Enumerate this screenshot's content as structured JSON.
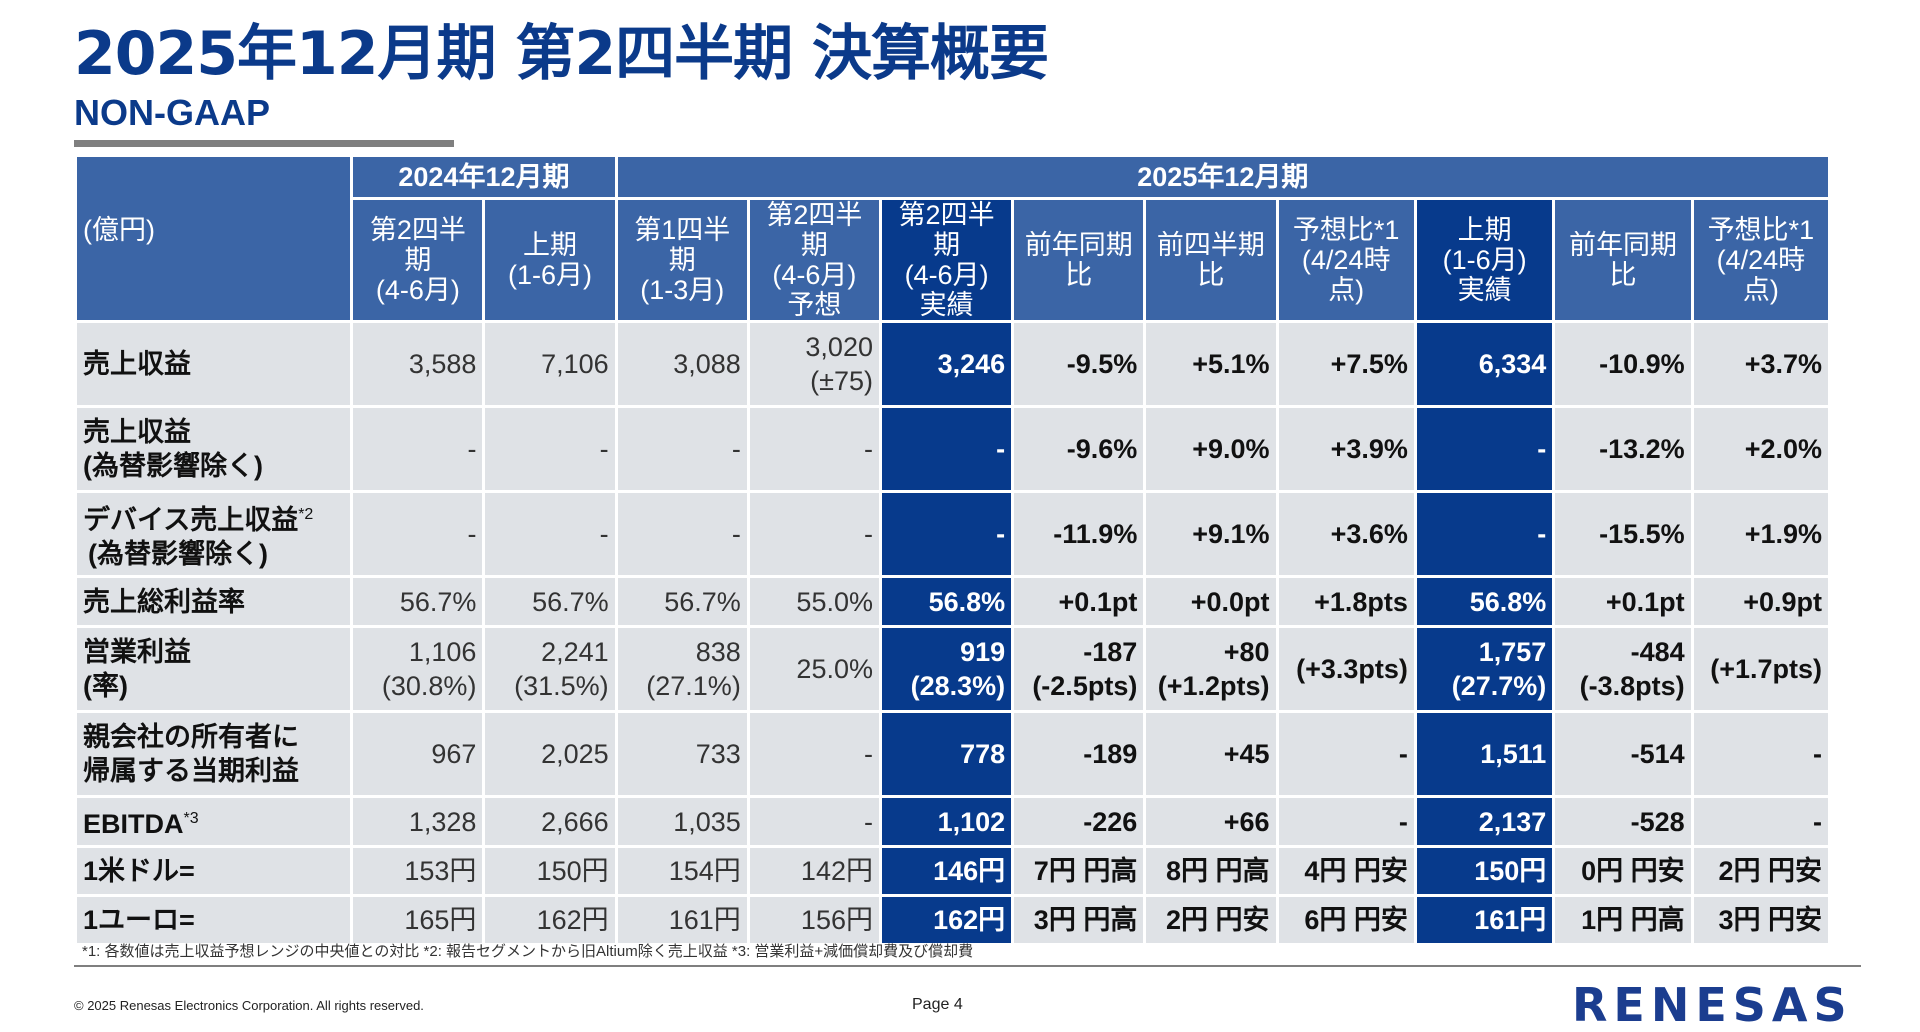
{
  "page": {
    "title": "2025年12月期 第2四半期 決算概要",
    "subtitle": "NON-GAAP",
    "footnote": "*1: 各数値は売上収益予想レンジの中央値との対比  *2: 報告セグメントから旧Altium除く売上収益  *3: 営業利益+減価償却費及び償却費",
    "copyright": "© 2025 Renesas Electronics Corporation. All rights reserved.",
    "page_number": "Page 4",
    "logo_text": "RENESAS"
  },
  "header": {
    "unit_label": "(億円)",
    "group_2024": "2024年12月期",
    "group_2025": "2025年12月期",
    "columns": [
      [
        "第2四半期",
        "(4-6月)"
      ],
      [
        "上期",
        "(1-6月)"
      ],
      [
        "第1四半期",
        "(1-3月)"
      ],
      [
        "第2四半期",
        "(4-6月)",
        "予想"
      ],
      [
        "第2四半期",
        "(4-6月)",
        "実績"
      ],
      [
        "前年同期",
        "比"
      ],
      [
        "前四半期",
        "比"
      ],
      [
        "予想比*1",
        "(4/24時点)"
      ],
      [
        "上期",
        "(1-6月)",
        "実績"
      ],
      [
        "前年同期比"
      ],
      [
        "予想比*1",
        "(4/24時点)"
      ]
    ]
  },
  "rows": [
    {
      "label": [
        "売上収益"
      ],
      "label_sup": "",
      "cells": [
        [
          "3,588"
        ],
        [
          "7,106"
        ],
        [
          "3,088"
        ],
        [
          "3,020",
          "(±75)"
        ],
        [
          "3,246"
        ],
        [
          "-9.5%"
        ],
        [
          "+5.1%"
        ],
        [
          "+7.5%"
        ],
        [
          "6,334"
        ],
        [
          "-10.9%"
        ],
        [
          "+3.7%"
        ]
      ]
    },
    {
      "label": [
        "売上収益",
        "(為替影響除く)"
      ],
      "label_sup": "",
      "cells": [
        [
          "-"
        ],
        [
          "-"
        ],
        [
          "-"
        ],
        [
          "-"
        ],
        [
          "-"
        ],
        [
          "-9.6%"
        ],
        [
          "+9.0%"
        ],
        [
          "+3.9%"
        ],
        [
          "-"
        ],
        [
          "-13.2%"
        ],
        [
          "+2.0%"
        ]
      ]
    },
    {
      "label": [
        "デバイス売上収益",
        "(為替影響除く)"
      ],
      "label_sup": "*2",
      "cells": [
        [
          "-"
        ],
        [
          "-"
        ],
        [
          "-"
        ],
        [
          "-"
        ],
        [
          "-"
        ],
        [
          "-11.9%"
        ],
        [
          "+9.1%"
        ],
        [
          "+3.6%"
        ],
        [
          "-"
        ],
        [
          "-15.5%"
        ],
        [
          "+1.9%"
        ]
      ]
    },
    {
      "label": [
        "売上総利益率"
      ],
      "label_sup": "",
      "cells": [
        [
          "56.7%"
        ],
        [
          "56.7%"
        ],
        [
          "56.7%"
        ],
        [
          "55.0%"
        ],
        [
          "56.8%"
        ],
        [
          "+0.1pt"
        ],
        [
          "+0.0pt"
        ],
        [
          "+1.8pts"
        ],
        [
          "56.8%"
        ],
        [
          "+0.1pt"
        ],
        [
          "+0.9pt"
        ]
      ]
    },
    {
      "label": [
        "営業利益",
        "(率)"
      ],
      "label_sup": "",
      "cells": [
        [
          "1,106",
          "(30.8%)"
        ],
        [
          "2,241",
          "(31.5%)"
        ],
        [
          "838",
          "(27.1%)"
        ],
        [
          "25.0%"
        ],
        [
          "919",
          "(28.3%)"
        ],
        [
          "-187",
          "(-2.5pts)"
        ],
        [
          "+80",
          "(+1.2pts)"
        ],
        [
          "(+3.3pts)"
        ],
        [
          "1,757",
          "(27.7%)"
        ],
        [
          "-484",
          "(-3.8pts)"
        ],
        [
          "(+1.7pts)"
        ]
      ]
    },
    {
      "label": [
        "親会社の所有者に",
        "帰属する当期利益"
      ],
      "label_sup": "",
      "cells": [
        [
          "967"
        ],
        [
          "2,025"
        ],
        [
          "733"
        ],
        [
          "-"
        ],
        [
          "778"
        ],
        [
          "-189"
        ],
        [
          "+45"
        ],
        [
          "-"
        ],
        [
          "1,511"
        ],
        [
          "-514"
        ],
        [
          "-"
        ]
      ]
    },
    {
      "label": [
        "EBITDA"
      ],
      "label_sup": "*3",
      "cells": [
        [
          "1,328"
        ],
        [
          "2,666"
        ],
        [
          "1,035"
        ],
        [
          "-"
        ],
        [
          "1,102"
        ],
        [
          "-226"
        ],
        [
          "+66"
        ],
        [
          "-"
        ],
        [
          "2,137"
        ],
        [
          "-528"
        ],
        [
          "-"
        ]
      ]
    },
    {
      "label": [
        "1米ドル="
      ],
      "label_sup": "",
      "cells": [
        [
          "153円"
        ],
        [
          "150円"
        ],
        [
          "154円"
        ],
        [
          "142円"
        ],
        [
          "146円"
        ],
        [
          "7円 円高"
        ],
        [
          "8円 円高"
        ],
        [
          "4円 円安"
        ],
        [
          "150円"
        ],
        [
          "0円 円安"
        ],
        [
          "2円 円安"
        ]
      ]
    },
    {
      "label": [
        "1ユーロ="
      ],
      "label_sup": "",
      "cells": [
        [
          "165円"
        ],
        [
          "162円"
        ],
        [
          "161円"
        ],
        [
          "156円"
        ],
        [
          "162円"
        ],
        [
          "3円 円高"
        ],
        [
          "2円 円安"
        ],
        [
          "6円 円安"
        ],
        [
          "161円"
        ],
        [
          "1円 円高"
        ],
        [
          "3円 円安"
        ]
      ]
    }
  ],
  "colors": {
    "title": "#0b3a8a",
    "header": "#3b65a6",
    "highlight": "#073a8c",
    "cell": "#dfe2e6"
  }
}
